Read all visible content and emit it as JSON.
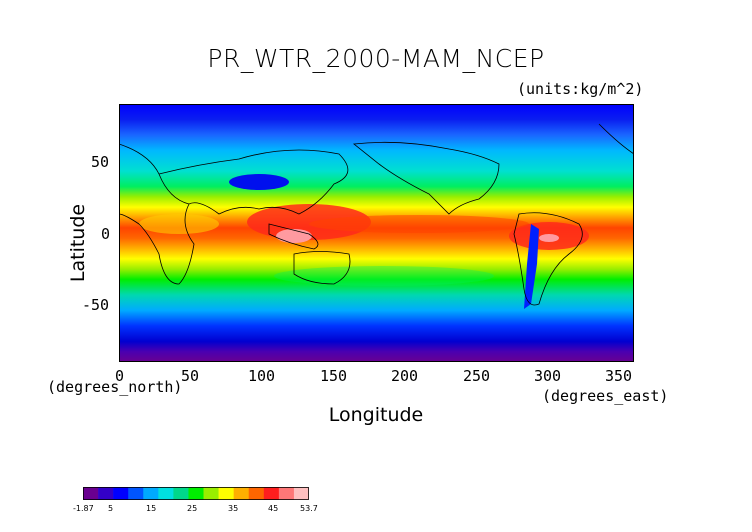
{
  "title": "PR_WTR_2000-MAM_NCEP",
  "units": "(units:kg/m^2)",
  "axes": {
    "xlabel": "Longitude",
    "ylabel": "Latitude",
    "x_units_note": "(degrees_east)",
    "y_units_note": "(degrees_north)",
    "x_ticks": [
      "0",
      "50",
      "100",
      "150",
      "200",
      "250",
      "300",
      "350"
    ],
    "y_ticks": [
      "50",
      "0",
      "-50"
    ]
  },
  "colorbar": {
    "labels": [
      "-1.87",
      "5",
      "15",
      "25",
      "35",
      "45",
      "53.7"
    ],
    "min": -1.87,
    "max": 53.7,
    "colors": [
      "#6a0090",
      "#3300c8",
      "#0000ff",
      "#0055ff",
      "#00aaff",
      "#00e0e0",
      "#00d88a",
      "#00ee00",
      "#99ee00",
      "#ffff00",
      "#ffb000",
      "#ff6600",
      "#ff1e1e",
      "#ff7777",
      "#ffc0c0"
    ]
  },
  "chart_data": {
    "type": "heatmap",
    "title": "PR_WTR_2000-MAM_NCEP",
    "xlabel": "Longitude",
    "ylabel": "Latitude",
    "xlim": [
      0,
      360
    ],
    "ylim": [
      -90,
      90
    ],
    "x_ticks": [
      0,
      50,
      100,
      150,
      200,
      250,
      300,
      350
    ],
    "y_ticks": [
      -50,
      0,
      50
    ],
    "value_range": [
      -1.87,
      53.7
    ],
    "zonal_profile": [
      {
        "lat": 80,
        "value": 5
      },
      {
        "lat": 60,
        "value": 10
      },
      {
        "lat": 45,
        "value": 17
      },
      {
        "lat": 30,
        "value": 25
      },
      {
        "lat": 15,
        "value": 38
      },
      {
        "lat": 0,
        "value": 47
      },
      {
        "lat": -15,
        "value": 38
      },
      {
        "lat": -30,
        "value": 25
      },
      {
        "lat": -45,
        "value": 15
      },
      {
        "lat": -60,
        "value": 8
      },
      {
        "lat": -75,
        "value": 3
      },
      {
        "lat": -85,
        "value": 0
      }
    ]
  }
}
